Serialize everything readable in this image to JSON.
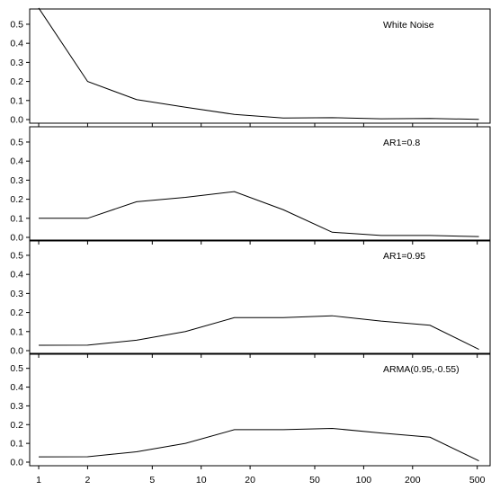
{
  "chart_data": {
    "type": "line",
    "x_scale": "log",
    "x_ticks": [
      1,
      2,
      5,
      10,
      20,
      50,
      100,
      200,
      500
    ],
    "x_tick_labels": [
      "1",
      "2",
      "5",
      "10",
      "20",
      "50",
      "100",
      "200",
      "500"
    ],
    "y_ticks": [
      0.0,
      0.1,
      0.2,
      0.3,
      0.4,
      0.5
    ],
    "y_tick_labels": [
      "0.0",
      "0.1",
      "0.2",
      "0.3",
      "0.4",
      "0.5"
    ],
    "ylim": [
      0,
      0.58
    ],
    "xlim": [
      0.88,
      600
    ],
    "grid": false,
    "line_color": "#000000",
    "panels": [
      {
        "label": "White Noise",
        "x": [
          1,
          2,
          4,
          8,
          16,
          32,
          64,
          128,
          256,
          512
        ],
        "y": [
          0.59,
          0.2,
          0.105,
          0.065,
          0.027,
          0.008,
          0.01,
          0.004,
          0.006,
          0.001
        ]
      },
      {
        "label": "AR1=0.8",
        "x": [
          1,
          2,
          4,
          8,
          16,
          32,
          64,
          128,
          256,
          512
        ],
        "y": [
          0.1,
          0.1,
          0.187,
          0.21,
          0.24,
          0.145,
          0.027,
          0.01,
          0.01,
          0.004
        ]
      },
      {
        "label": "AR1=0.95",
        "x": [
          1,
          2,
          4,
          8,
          16,
          32,
          64,
          128,
          256,
          512
        ],
        "y": [
          0.028,
          0.029,
          0.055,
          0.1,
          0.173,
          0.173,
          0.183,
          0.155,
          0.133,
          0.007
        ]
      },
      {
        "label": "ARMA(0.95,-0.55)",
        "x": [
          1,
          2,
          4,
          8,
          16,
          32,
          64,
          128,
          256,
          512
        ],
        "y": [
          0.028,
          0.029,
          0.055,
          0.1,
          0.173,
          0.173,
          0.18,
          0.155,
          0.133,
          0.007
        ]
      }
    ]
  }
}
